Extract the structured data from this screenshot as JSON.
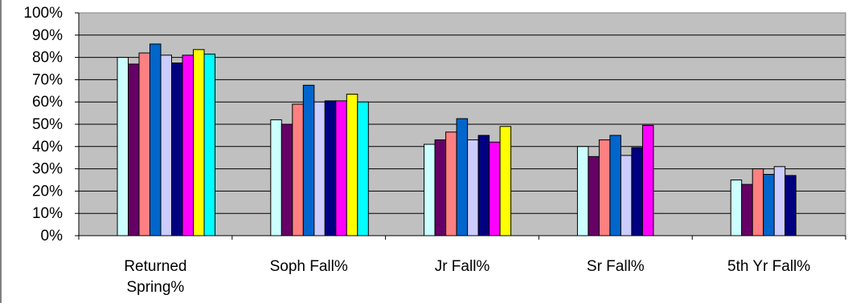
{
  "chart_data": {
    "type": "bar",
    "title": "",
    "xlabel": "",
    "ylabel": "",
    "ylim": [
      0,
      100
    ],
    "yticks": [
      "0%",
      "10%",
      "20%",
      "30%",
      "40%",
      "50%",
      "60%",
      "70%",
      "80%",
      "90%",
      "100%"
    ],
    "grid": true,
    "legend": "none",
    "plot_background": "#C0C0C0",
    "categories": [
      [
        "Returned",
        "Spring%"
      ],
      [
        "Soph Fall%"
      ],
      [
        "Jr Fall%"
      ],
      [
        "Sr Fall%"
      ],
      [
        "5th Yr Fall%"
      ]
    ],
    "series": [
      {
        "color": "#CCFFFF",
        "values": [
          80,
          52,
          41,
          40,
          25
        ]
      },
      {
        "color": "#660066",
        "values": [
          77,
          50,
          43,
          35.5,
          23
        ]
      },
      {
        "color": "#FF8080",
        "values": [
          82,
          59,
          46.5,
          43,
          30
        ]
      },
      {
        "color": "#0066CC",
        "values": [
          86,
          67.5,
          52.5,
          45,
          27.5
        ]
      },
      {
        "color": "#CCCCFF",
        "values": [
          81,
          60,
          43,
          36,
          31
        ]
      },
      {
        "color": "#000080",
        "values": [
          77.5,
          60.5,
          45,
          39.5,
          27
        ]
      },
      {
        "color": "#FF00FF",
        "values": [
          81,
          60.5,
          42,
          49.5,
          null
        ]
      },
      {
        "color": "#FFFF00",
        "values": [
          83.5,
          63.5,
          49,
          null,
          null
        ]
      },
      {
        "color": "#00FFFF",
        "values": [
          81.5,
          60,
          null,
          null,
          null
        ]
      }
    ]
  }
}
